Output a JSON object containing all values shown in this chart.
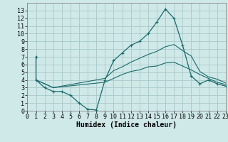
{
  "xlabel": "Humidex (Indice chaleur)",
  "xlim": [
    0,
    23
  ],
  "ylim": [
    0,
    14
  ],
  "xticks": [
    0,
    1,
    2,
    3,
    4,
    5,
    6,
    7,
    8,
    9,
    10,
    11,
    12,
    13,
    14,
    15,
    16,
    17,
    18,
    19,
    20,
    21,
    22,
    23
  ],
  "yticks": [
    0,
    1,
    2,
    3,
    4,
    5,
    6,
    7,
    8,
    9,
    10,
    11,
    12,
    13
  ],
  "bg_color": "#cfe8e8",
  "grid_color": "#aac8c8",
  "line_color": "#1a6b6b",
  "curve1_x": [
    1,
    1,
    2,
    3,
    4,
    5,
    6,
    7,
    8,
    9,
    10,
    11,
    12,
    13,
    14,
    15,
    16,
    17,
    18,
    19,
    20,
    21,
    22,
    23
  ],
  "curve1_y": [
    7.0,
    4.0,
    3.0,
    2.5,
    2.5,
    2.0,
    1.0,
    0.2,
    0.1,
    4.0,
    6.5,
    7.5,
    8.5,
    9.0,
    10.0,
    11.5,
    13.2,
    12.0,
    8.5,
    4.5,
    3.5,
    4.0,
    3.5,
    3.2
  ],
  "curve2_x": [
    1,
    3,
    9,
    10,
    11,
    12,
    13,
    14,
    15,
    16,
    17,
    18,
    19,
    20,
    21,
    22,
    23
  ],
  "curve2_y": [
    4.0,
    3.0,
    4.2,
    5.2,
    5.7,
    6.3,
    6.8,
    7.3,
    7.7,
    8.3,
    8.6,
    7.8,
    7.1,
    5.1,
    4.4,
    4.1,
    3.6
  ],
  "curve3_x": [
    1,
    3,
    9,
    10,
    11,
    12,
    13,
    14,
    15,
    16,
    17,
    18,
    19,
    20,
    21,
    22,
    23
  ],
  "curve3_y": [
    4.0,
    3.0,
    3.7,
    4.2,
    4.7,
    5.1,
    5.3,
    5.7,
    5.8,
    6.2,
    6.3,
    5.8,
    5.3,
    4.7,
    4.2,
    3.7,
    3.4
  ],
  "tick_fontsize": 6,
  "xlabel_fontsize": 7
}
